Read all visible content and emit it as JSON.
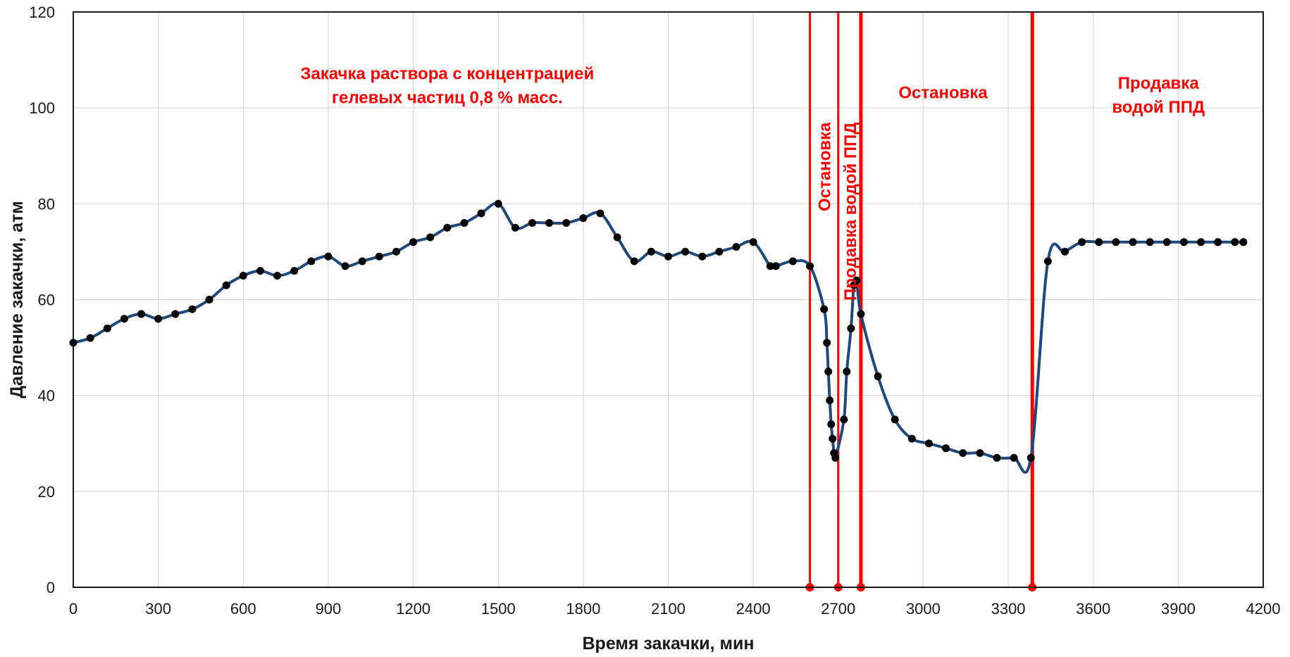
{
  "chart_data": {
    "type": "line",
    "title": "",
    "xlabel": "Время закачки, мин",
    "ylabel": "Давление закачки, атм",
    "xlim": [
      0,
      4200
    ],
    "ylim": [
      0,
      120
    ],
    "x_ticks": [
      0,
      300,
      600,
      900,
      1200,
      1500,
      1800,
      2100,
      2400,
      2700,
      3000,
      3300,
      3600,
      3900,
      4200
    ],
    "y_ticks": [
      0,
      20,
      40,
      60,
      80,
      100,
      120
    ],
    "grid": true,
    "legend": "none",
    "colors": {
      "line": "#1f497d",
      "marker": "#000000",
      "events": "#ff0000",
      "grid": "#d9d9d9"
    },
    "series": [
      {
        "x": [
          0,
          60,
          120,
          180,
          240,
          300,
          360,
          420,
          480,
          540,
          600,
          660,
          720,
          780,
          840,
          900,
          960,
          1020,
          1080,
          1140,
          1200,
          1260,
          1320,
          1380,
          1440,
          1500,
          1560,
          1620,
          1680,
          1740,
          1800,
          1860,
          1920,
          1980,
          2040,
          2100,
          2160,
          2220,
          2280,
          2340,
          2400,
          2460,
          2480,
          2540,
          2600,
          2650,
          2660,
          2665,
          2670,
          2675,
          2680,
          2685,
          2690,
          2720,
          2730,
          2745,
          2755,
          2765,
          2780,
          2840,
          2900,
          2960,
          3020,
          3080,
          3140,
          3200,
          3260,
          3320,
          3380,
          3440,
          3500,
          3560,
          3620,
          3680,
          3740,
          3800,
          3860,
          3920,
          3980,
          4040,
          4100,
          4130
        ],
        "y": [
          51,
          52,
          54,
          56,
          57,
          56,
          57,
          58,
          60,
          63,
          65,
          66,
          65,
          66,
          68,
          69,
          67,
          68,
          69,
          70,
          72,
          73,
          75,
          76,
          78,
          80,
          75,
          76,
          76,
          76,
          77,
          78,
          73,
          68,
          70,
          69,
          70,
          69,
          70,
          71,
          72,
          67,
          67,
          68,
          67,
          58,
          51,
          45,
          39,
          34,
          31,
          28,
          27,
          35,
          45,
          54,
          63,
          64,
          57,
          44,
          35,
          31,
          30,
          29,
          28,
          28,
          27,
          27,
          27,
          68,
          70,
          72,
          72,
          72,
          72,
          72,
          72,
          72,
          72,
          72,
          72,
          72
        ]
      }
    ],
    "event_lines_x": [
      2600,
      2700,
      2780,
      3385
    ],
    "annotations": [
      {
        "text": [
          "Закачка раствора  с концентрацией",
          "гелевых частиц 0,8 % масс."
        ],
        "x": 1320,
        "y": 106,
        "orientation": "horizontal"
      },
      {
        "text": [
          "Остановка"
        ],
        "x": 2650,
        "y": 97,
        "orientation": "vertical"
      },
      {
        "text": [
          "Продавка водой ППД"
        ],
        "x": 2740,
        "y": 97,
        "orientation": "vertical"
      },
      {
        "text": [
          "Остановка"
        ],
        "x": 3070,
        "y": 102,
        "orientation": "horizontal"
      },
      {
        "text": [
          "Продавка",
          "водой ППД"
        ],
        "x": 3830,
        "y": 104,
        "orientation": "horizontal"
      }
    ]
  }
}
